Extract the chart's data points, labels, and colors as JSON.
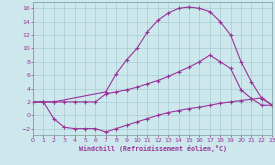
{
  "xlabel": "Windchill (Refroidissement éolien,°C)",
  "bg_color": "#cce8ec",
  "grid_color": "#aaccd4",
  "line_color": "#993399",
  "xlim": [
    0,
    23
  ],
  "ylim": [
    -3,
    17
  ],
  "xticks": [
    0,
    1,
    2,
    3,
    4,
    5,
    6,
    7,
    8,
    9,
    10,
    11,
    12,
    13,
    14,
    15,
    16,
    17,
    18,
    19,
    20,
    21,
    22,
    23
  ],
  "yticks": [
    -2,
    0,
    2,
    4,
    6,
    8,
    10,
    12,
    14,
    16
  ],
  "line1_x": [
    0,
    1,
    2,
    3,
    4,
    5,
    6,
    7,
    8,
    9,
    10,
    11,
    12,
    13,
    14,
    15,
    16,
    17,
    18,
    19,
    20,
    21,
    22,
    23
  ],
  "line1_y": [
    2,
    2,
    2,
    2,
    2,
    2,
    2,
    3.2,
    3.5,
    3.8,
    4.2,
    4.7,
    5.2,
    5.8,
    6.5,
    7.2,
    8.0,
    9.0,
    8.0,
    7.0,
    3.8,
    2.5,
    1.5,
    1.5
  ],
  "line2_x": [
    0,
    1,
    2,
    3,
    4,
    5,
    6,
    7,
    8,
    9,
    10,
    11,
    12,
    13,
    14,
    15,
    16,
    17,
    18,
    19,
    20,
    21,
    22,
    23
  ],
  "line2_y": [
    2,
    2,
    -0.5,
    -1.8,
    -2.0,
    -2.0,
    -2.0,
    -2.5,
    -2.0,
    -1.5,
    -1.0,
    -0.5,
    0.0,
    0.4,
    0.7,
    1.0,
    1.2,
    1.5,
    1.8,
    2.0,
    2.2,
    2.4,
    2.6,
    1.5
  ],
  "line3_x": [
    0,
    1,
    2,
    7,
    8,
    9,
    10,
    11,
    12,
    13,
    14,
    15,
    16,
    17,
    18,
    19,
    20,
    21,
    22,
    23
  ],
  "line3_y": [
    2,
    2,
    2,
    3.5,
    6.2,
    8.3,
    10.0,
    12.5,
    14.2,
    15.3,
    16.0,
    16.2,
    16.0,
    15.5,
    14.0,
    12.0,
    8.0,
    5.0,
    2.5,
    1.5
  ]
}
